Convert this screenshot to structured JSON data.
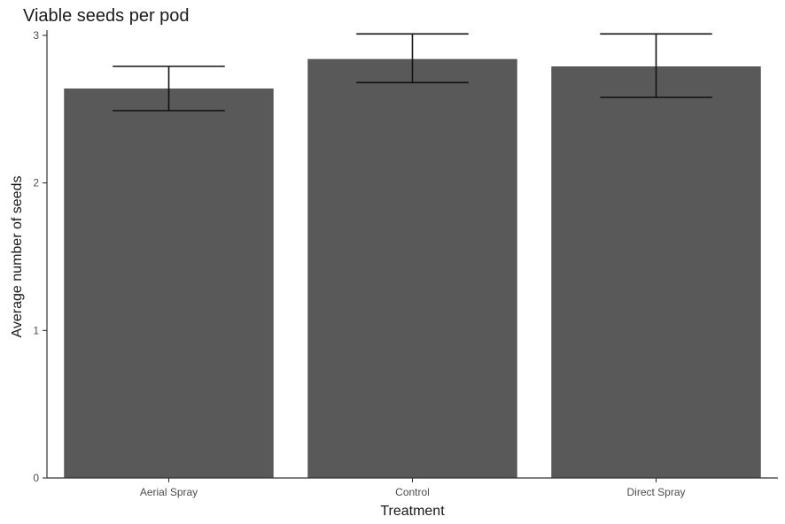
{
  "chart_data": {
    "type": "bar",
    "title": "Viable seeds per pod",
    "xlabel": "Treatment",
    "ylabel": "Average number of seeds",
    "categories": [
      "Aerial Spray",
      "Control",
      "Direct Spray"
    ],
    "values": [
      2.64,
      2.84,
      2.79
    ],
    "error_low": [
      2.49,
      2.68,
      2.58
    ],
    "error_high": [
      2.79,
      3.01,
      3.01
    ],
    "ylim": [
      0,
      3
    ],
    "yticks": [
      0,
      1,
      2,
      3
    ],
    "grid": false,
    "bar_color": "#595959",
    "error_color": "#111111"
  }
}
